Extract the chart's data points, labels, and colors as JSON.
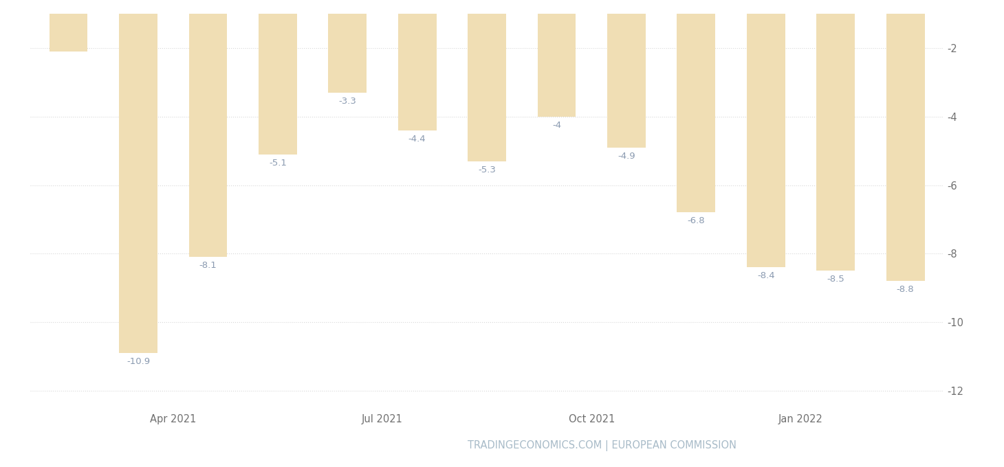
{
  "values": [
    -2.1,
    -10.9,
    -8.1,
    -5.1,
    -3.3,
    -4.4,
    -5.3,
    -4.0,
    -4.9,
    -6.8,
    -8.4,
    -8.5,
    -8.8
  ],
  "labels": [
    "",
    "-10.9",
    "-8.1",
    "-5.1",
    "-3.3",
    "-4.4",
    "-5.3",
    "-4",
    "-4.9",
    "-6.8",
    "-8.4",
    "-8.5",
    "-8.8"
  ],
  "bar_color": "#f0deb4",
  "label_color": "#8a9ab0",
  "xlabel_labels": [
    "Apr 2021",
    "Jul 2021",
    "Oct 2021",
    "Jan 2022"
  ],
  "yticks": [
    -2,
    -4,
    -6,
    -8,
    -10,
    -12
  ],
  "ylim": [
    -12.6,
    -1.0
  ],
  "background_color": "#ffffff",
  "grid_color": "#d8d8d8",
  "watermark": "TRADINGECONOMICS.COM | EUROPEAN COMMISSION",
  "watermark_color": "#a8bbc8",
  "label_fontsize": 9.5,
  "axis_fontsize": 10.5,
  "watermark_fontsize": 10.5
}
